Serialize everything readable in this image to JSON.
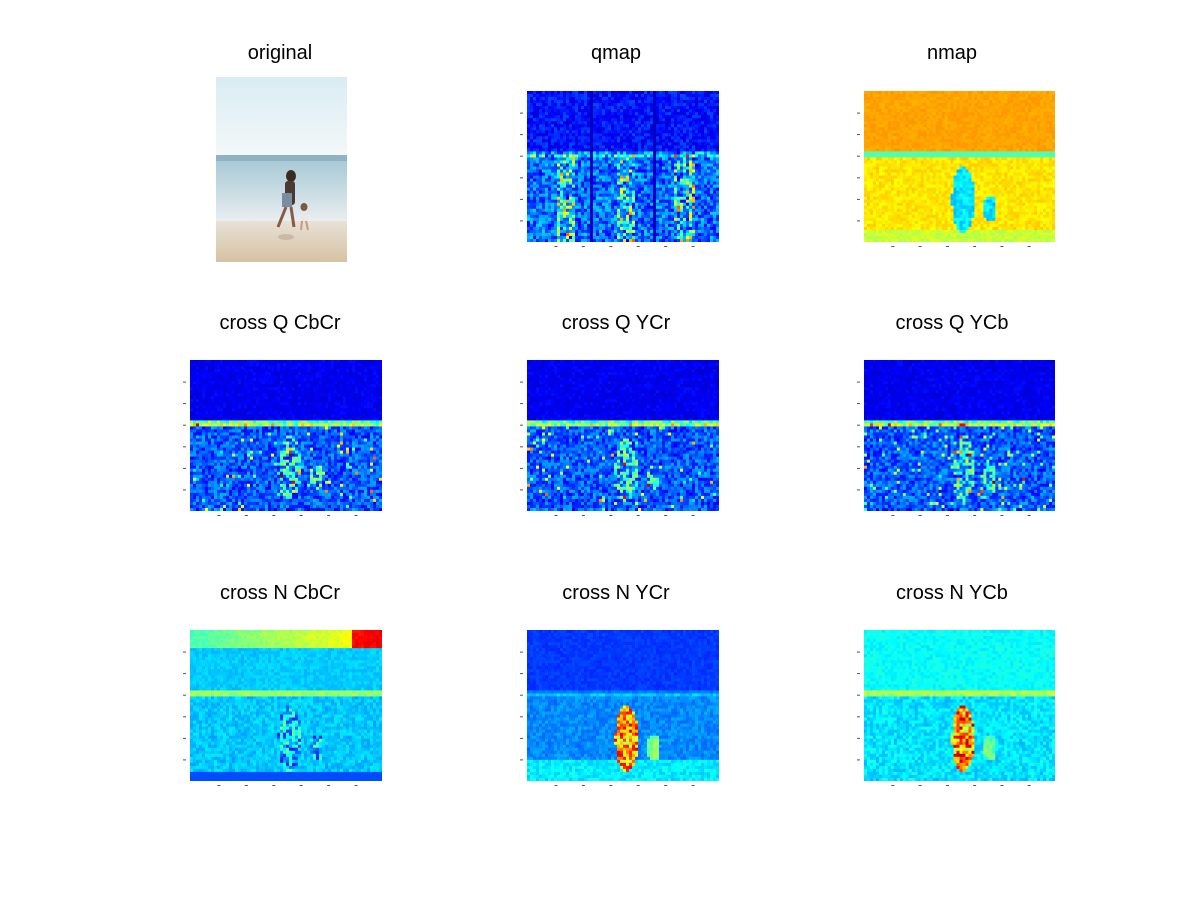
{
  "figure": {
    "panels": [
      {
        "id": "original",
        "title": "original",
        "kind": "photo"
      },
      {
        "id": "qmap",
        "title": "qmap",
        "kind": "qmap"
      },
      {
        "id": "nmap",
        "title": "nmap",
        "kind": "nmap"
      },
      {
        "id": "cross-q-cbcr",
        "title": "cross Q CbCr",
        "kind": "crossq"
      },
      {
        "id": "cross-q-ycr",
        "title": "cross Q YCr",
        "kind": "crossq"
      },
      {
        "id": "cross-q-ycb",
        "title": "cross Q YCb",
        "kind": "crossq2"
      },
      {
        "id": "cross-n-cbcr",
        "title": "cross N CbCr",
        "kind": "crossn1"
      },
      {
        "id": "cross-n-ycr",
        "title": "cross N YCr",
        "kind": "crossn2"
      },
      {
        "id": "cross-n-ycb",
        "title": "cross N YCb",
        "kind": "crossn3"
      }
    ]
  },
  "colormap": {
    "dark_blue": "#00007f",
    "blue": "#0000ff",
    "mid_blue": "#0050ff",
    "light_blue": "#00a0ff",
    "cyan": "#00ffff",
    "yellow": "#ffd700",
    "orange": "#ff8000",
    "red": "#ff0000"
  }
}
